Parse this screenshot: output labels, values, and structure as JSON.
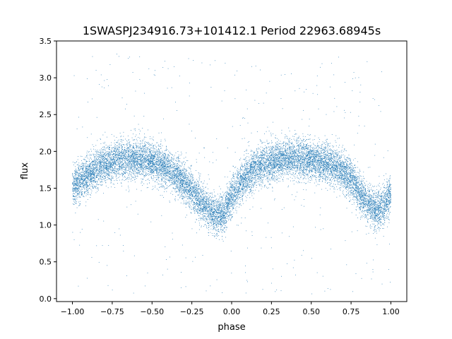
{
  "chart_data": {
    "type": "scatter",
    "title": "1SWASPJ234916.73+101412.1 Period 22963.68945s",
    "xlabel": "phase",
    "ylabel": "flux",
    "xlim": [
      -1.1,
      1.1
    ],
    "ylim": [
      -0.04,
      3.5
    ],
    "x_ticks": [
      -1.0,
      -0.75,
      -0.5,
      -0.25,
      0.0,
      0.25,
      0.5,
      0.75,
      1.0
    ],
    "x_tick_labels": [
      "−1.00",
      "−0.75",
      "−0.50",
      "−0.25",
      "0.00",
      "0.25",
      "0.50",
      "0.75",
      "1.00"
    ],
    "y_ticks": [
      0.0,
      0.5,
      1.0,
      1.5,
      2.0,
      2.5,
      3.0,
      3.5
    ],
    "y_tick_labels": [
      "0.0",
      "0.5",
      "1.0",
      "1.5",
      "2.0",
      "2.5",
      "3.0",
      "3.5"
    ],
    "grid": false,
    "legend": "none",
    "point_color": "#1f77b4",
    "series": [
      {
        "x": [
          -1.0,
          -0.95,
          -0.9,
          -0.85,
          -0.8,
          -0.75,
          -0.7,
          -0.65,
          -0.6,
          -0.55,
          -0.5,
          -0.45,
          -0.4,
          -0.35,
          -0.3,
          -0.25,
          -0.2,
          -0.15,
          -0.1,
          -0.05,
          0.0,
          0.05,
          0.1,
          0.15,
          0.2,
          0.25,
          0.3,
          0.35,
          0.4,
          0.45,
          0.5,
          0.55,
          0.6,
          0.65,
          0.7,
          0.75,
          0.8,
          0.85,
          0.9,
          0.95,
          1.0
        ],
        "y": [
          1.5,
          1.6,
          1.68,
          1.76,
          1.82,
          1.86,
          1.89,
          1.9,
          1.9,
          1.89,
          1.86,
          1.82,
          1.76,
          1.68,
          1.58,
          1.46,
          1.34,
          1.22,
          1.12,
          1.15,
          1.38,
          1.55,
          1.67,
          1.76,
          1.82,
          1.86,
          1.89,
          1.9,
          1.91,
          1.9,
          1.88,
          1.86,
          1.83,
          1.79,
          1.72,
          1.62,
          1.48,
          1.32,
          1.2,
          1.26,
          1.42
        ],
        "scatter_sd": 0.13,
        "outlier_fraction": 0.03,
        "n_points": 14000
      }
    ]
  }
}
